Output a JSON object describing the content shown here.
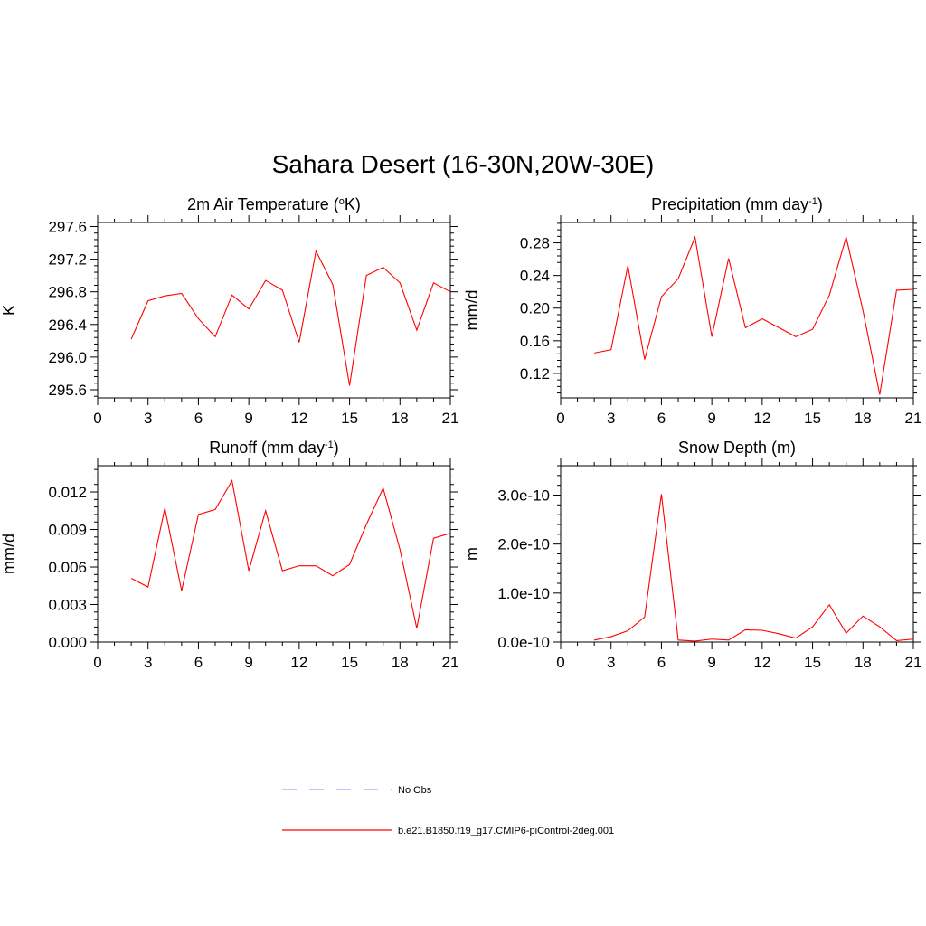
{
  "figure": {
    "title": "Sahara Desert (16-30N,20W-30E)"
  },
  "legend": {
    "items": [
      {
        "label": "No Obs",
        "style": "dashed",
        "color": "#a0a0ff"
      },
      {
        "label": "b.e21.B1850.f19_g17.CMIP6-piControl-2deg.001",
        "style": "solid",
        "color": "#ff0000"
      }
    ]
  },
  "chart_data": [
    {
      "type": "line",
      "title": "2m Air Temperature (",
      "title_sup": "o",
      "title_after": "K)",
      "ylabel": "K",
      "xlim": [
        0,
        21
      ],
      "ylim": [
        295.5,
        297.65
      ],
      "xticks": [
        0,
        3,
        6,
        9,
        12,
        15,
        18,
        21
      ],
      "yticks": [
        295.6,
        296.0,
        296.4,
        296.8,
        297.2,
        297.6
      ],
      "ytick_labels": [
        "295.6",
        "296.0",
        "296.4",
        "296.8",
        "297.2",
        "297.6"
      ],
      "series": [
        {
          "color": "#ff0000",
          "x": [
            2,
            3,
            4,
            5,
            6,
            7,
            8,
            9,
            10,
            11,
            12,
            13,
            14,
            15,
            16,
            17,
            18,
            19,
            20,
            21
          ],
          "y": [
            296.22,
            296.69,
            296.75,
            296.78,
            296.47,
            296.25,
            296.76,
            296.59,
            296.94,
            296.82,
            296.18,
            297.3,
            296.89,
            295.65,
            297.0,
            297.1,
            296.91,
            296.33,
            296.91,
            296.8
          ]
        }
      ]
    },
    {
      "type": "line",
      "title": "Precipitation (mm day",
      "title_sup": "-1",
      "title_after": ")",
      "ylabel": "mm/d",
      "xlim": [
        0,
        21
      ],
      "ylim": [
        0.09,
        0.305
      ],
      "xticks": [
        0,
        3,
        6,
        9,
        12,
        15,
        18,
        21
      ],
      "yticks": [
        0.12,
        0.16,
        0.2,
        0.24,
        0.28
      ],
      "ytick_labels": [
        "0.12",
        "0.16",
        "0.20",
        "0.24",
        "0.28"
      ],
      "series": [
        {
          "color": "#ff0000",
          "x": [
            2,
            3,
            4,
            5,
            6,
            7,
            8,
            9,
            10,
            11,
            12,
            13,
            14,
            15,
            16,
            17,
            18,
            19,
            20,
            21
          ],
          "y": [
            0.145,
            0.149,
            0.252,
            0.137,
            0.214,
            0.236,
            0.287,
            0.165,
            0.261,
            0.176,
            0.187,
            0.176,
            0.165,
            0.174,
            0.216,
            0.287,
            0.197,
            0.094,
            0.222,
            0.223
          ]
        }
      ]
    },
    {
      "type": "line",
      "title": "Runoff (mm day",
      "title_sup": "-1",
      "title_after": ")",
      "ylabel": "mm/d",
      "xlim": [
        0,
        21
      ],
      "ylim": [
        0.0,
        0.0141
      ],
      "xticks": [
        0,
        3,
        6,
        9,
        12,
        15,
        18,
        21
      ],
      "yticks": [
        0.0,
        0.003,
        0.006,
        0.009,
        0.012
      ],
      "ytick_labels": [
        "0.000",
        "0.003",
        "0.006",
        "0.009",
        "0.012"
      ],
      "series": [
        {
          "color": "#ff0000",
          "x": [
            2,
            3,
            4,
            5,
            6,
            7,
            8,
            9,
            10,
            11,
            12,
            13,
            14,
            15,
            16,
            17,
            18,
            19,
            20,
            21
          ],
          "y": [
            0.0051,
            0.0044,
            0.0107,
            0.0041,
            0.0102,
            0.0106,
            0.0129,
            0.0057,
            0.0105,
            0.0057,
            0.0061,
            0.0061,
            0.0053,
            0.0062,
            0.0094,
            0.0123,
            0.0074,
            0.0011,
            0.0083,
            0.0087
          ]
        }
      ]
    },
    {
      "type": "line",
      "title": "Snow Depth (m)",
      "title_sup": "",
      "title_after": "",
      "ylabel": "m",
      "xlim": [
        0,
        21
      ],
      "ylim": [
        0.0,
        3.6e-10
      ],
      "xticks": [
        0,
        3,
        6,
        9,
        12,
        15,
        18,
        21
      ],
      "yticks": [
        0.0,
        1e-10,
        2e-10,
        3e-10
      ],
      "ytick_labels": [
        "0.0e-10",
        "1.0e-10",
        "2.0e-10",
        "3.0e-10"
      ],
      "series": [
        {
          "color": "#ff0000",
          "x": [
            2,
            3,
            4,
            5,
            6,
            7,
            8,
            9,
            10,
            11,
            12,
            13,
            14,
            15,
            16,
            17,
            18,
            19,
            20,
            21
          ],
          "y": [
            4e-12,
            1.1e-11,
            2.3e-11,
            5.1e-11,
            3.02e-10,
            4e-12,
            2e-12,
            6e-12,
            4e-12,
            2.5e-11,
            2.4e-11,
            1.7e-11,
            8e-12,
            3.1e-11,
            7.6e-11,
            1.8e-11,
            5.3e-11,
            3.1e-11,
            3e-12,
            6e-12
          ]
        }
      ]
    }
  ]
}
